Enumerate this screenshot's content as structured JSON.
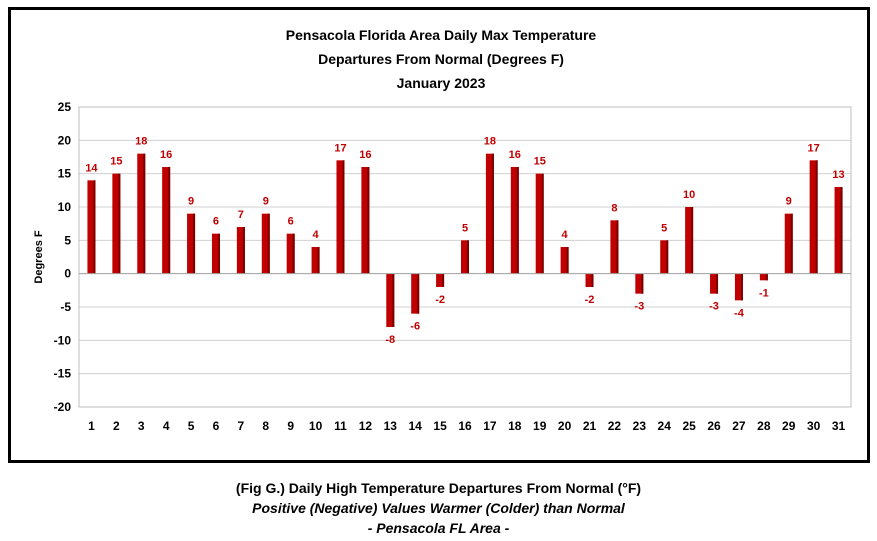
{
  "chart_data": {
    "type": "bar",
    "title": [
      "Pensacola Florida Area Daily Max Temperature",
      "Departures From Normal (Degrees F)",
      "January 2023"
    ],
    "ylabel": "Degrees F",
    "xlabel": "",
    "ylim": [
      -20,
      25
    ],
    "yticks": [
      25,
      20,
      15,
      10,
      5,
      0,
      -5,
      -10,
      -15,
      -20
    ],
    "grid": true,
    "categories": [
      "1",
      "2",
      "3",
      "4",
      "5",
      "6",
      "7",
      "8",
      "9",
      "10",
      "11",
      "12",
      "13",
      "14",
      "15",
      "16",
      "17",
      "18",
      "19",
      "20",
      "21",
      "22",
      "23",
      "24",
      "25",
      "26",
      "27",
      "28",
      "29",
      "30",
      "31"
    ],
    "values": [
      14,
      15,
      18,
      16,
      9,
      6,
      7,
      9,
      6,
      4,
      17,
      16,
      -8,
      -6,
      -2,
      5,
      18,
      16,
      15,
      4,
      -2,
      8,
      -3,
      5,
      10,
      -3,
      -4,
      -1,
      9,
      17,
      13
    ],
    "bar_color": "#c00000",
    "bar_dark_color": "#7a0000",
    "label_color": "#c00000"
  },
  "caption": {
    "line1": "(Fig G.) Daily High Temperature Departures From Normal (°F)",
    "line2": "Positive (Negative) Values Warmer (Colder) than Normal",
    "line3": "- Pensacola FL Area -"
  }
}
